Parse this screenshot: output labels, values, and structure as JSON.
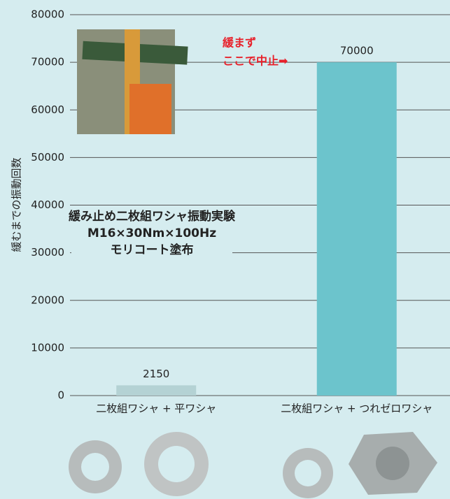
{
  "chart_data": {
    "type": "bar",
    "y_label": "緩むまでの振動回数",
    "categories": [
      "二枚組ワシャ + 平ワシャ",
      "二枚組ワシャ + つれゼロワシャ"
    ],
    "values": [
      2150,
      70000
    ],
    "value_labels": [
      "2150",
      "70000"
    ],
    "colors": [
      "#b4d2d4",
      "#6cc4cc"
    ],
    "ylim": [
      0,
      80000
    ],
    "yticks": [
      0,
      10000,
      20000,
      30000,
      40000,
      50000,
      60000,
      70000,
      80000
    ],
    "grid": true,
    "annotation": [
      "緩み止め二枚組ワシャ振動実験",
      "M16×30Nm×100Hz",
      "モリコート塗布"
    ],
    "note": [
      "緩まず",
      "ここで中止➡"
    ]
  }
}
